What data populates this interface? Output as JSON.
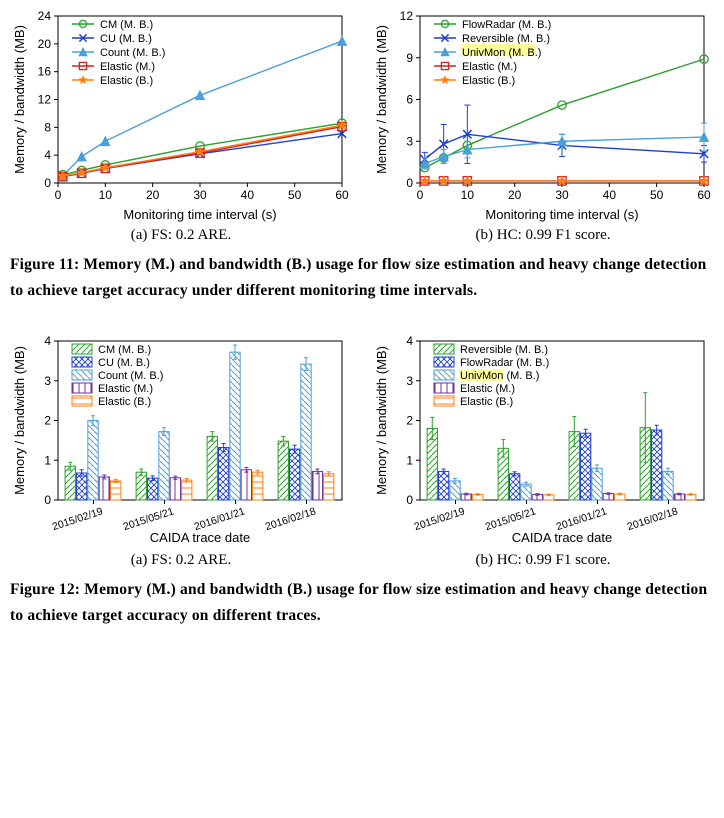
{
  "fig11": {
    "caption": "Memory (M.) and bandwidth (B.) usage for flow size estimation and heavy change detection to achieve target accuracy under different monitoring time intervals.",
    "fignum": "Figure 11:",
    "panel_a": {
      "type": "line",
      "subcaption": "(a) FS: 0.2 ARE.",
      "xlabel": "Monitoring time interval (s)",
      "ylabel": "Memory / bandwidth (MB)",
      "xticks": [
        0,
        10,
        20,
        30,
        40,
        50,
        60
      ],
      "yticks": [
        0,
        4,
        8,
        12,
        16,
        20,
        24
      ],
      "xlim": [
        0,
        60
      ],
      "ylim": [
        0,
        24
      ],
      "legend_pos": "top-left-inset",
      "series": [
        {
          "name": "CM (M. B.)",
          "color": "#2ca02c",
          "marker": "circle",
          "fill": "none",
          "dash": "",
          "data": [
            [
              1,
              1.2
            ],
            [
              5,
              1.8
            ],
            [
              10,
              2.6
            ],
            [
              30,
              5.3
            ],
            [
              60,
              8.6
            ]
          ]
        },
        {
          "name": "CU (M. B.)",
          "color": "#1f3fd1",
          "marker": "x",
          "fill": "none",
          "dash": "",
          "data": [
            [
              1,
              1.0
            ],
            [
              5,
              1.4
            ],
            [
              10,
              2.1
            ],
            [
              30,
              4.2
            ],
            [
              60,
              7.1
            ]
          ]
        },
        {
          "name": "Count (M. B.)",
          "color": "#4aa0d9",
          "marker": "triangle",
          "fill": "#4aa0d9",
          "dash": "",
          "data": [
            [
              1,
              1.0
            ],
            [
              5,
              3.8
            ],
            [
              10,
              6.0
            ],
            [
              30,
              12.6
            ],
            [
              60,
              20.4
            ]
          ]
        },
        {
          "name": "Elastic (M.)",
          "color": "#d02424",
          "marker": "square",
          "fill": "none",
          "dash": "",
          "data": [
            [
              1,
              0.9
            ],
            [
              5,
              1.4
            ],
            [
              10,
              2.1
            ],
            [
              30,
              4.3
            ],
            [
              60,
              8.1
            ]
          ]
        },
        {
          "name": "Elastic (B.)",
          "color": "#ff7f0e",
          "marker": "star",
          "fill": "#ff7f0e",
          "dash": "",
          "data": [
            [
              1,
              1.0
            ],
            [
              5,
              1.5
            ],
            [
              10,
              2.2
            ],
            [
              30,
              4.5
            ],
            [
              60,
              8.3
            ]
          ]
        }
      ]
    },
    "panel_b": {
      "type": "line",
      "subcaption": "(b) HC: 0.99 F1 score.",
      "xlabel": "Monitoring time interval (s)",
      "ylabel": "Memory / bandwidth (MB)",
      "xticks": [
        0,
        10,
        20,
        30,
        40,
        50,
        60
      ],
      "yticks": [
        0,
        3,
        6,
        9,
        12
      ],
      "xlim": [
        0,
        60
      ],
      "ylim": [
        0,
        12
      ],
      "legend_pos": "top-left-inset",
      "series": [
        {
          "name": "FlowRadar (M. B.)",
          "color": "#2ca02c",
          "marker": "circle",
          "fill": "none",
          "dash": "",
          "data": [
            [
              1,
              1.1
            ],
            [
              5,
              1.8
            ],
            [
              10,
              2.7
            ],
            [
              30,
              5.6
            ],
            [
              60,
              8.9
            ]
          ]
        },
        {
          "name": "Reversible (M. B.)",
          "color": "#1f3fd1",
          "marker": "x",
          "fill": "none",
          "dash": "",
          "data": [
            [
              1,
              1.7
            ],
            [
              5,
              2.8
            ],
            [
              10,
              3.5
            ],
            [
              30,
              2.7
            ],
            [
              60,
              2.1
            ]
          ],
          "err": [
            [
              1,
              0.5
            ],
            [
              5,
              1.4
            ],
            [
              10,
              2.1
            ],
            [
              30,
              0.8
            ],
            [
              60,
              0.6
            ]
          ]
        },
        {
          "name": "UnivMon (M. B.)",
          "hl": true,
          "color": "#4aa0d9",
          "marker": "triangle",
          "fill": "#4aa0d9",
          "dash": "",
          "data": [
            [
              1,
              1.4
            ],
            [
              5,
              1.9
            ],
            [
              10,
              2.4
            ],
            [
              30,
              3.0
            ],
            [
              60,
              3.3
            ]
          ],
          "err": [
            [
              1,
              0.4
            ],
            [
              5,
              0.5
            ],
            [
              10,
              0.6
            ],
            [
              30,
              0.5
            ],
            [
              60,
              1.0
            ]
          ]
        },
        {
          "name": "Elastic (M.)",
          "color": "#d02424",
          "marker": "square",
          "fill": "none",
          "dash": "",
          "data": [
            [
              1,
              0.15
            ],
            [
              5,
              0.15
            ],
            [
              10,
              0.15
            ],
            [
              30,
              0.15
            ],
            [
              60,
              0.15
            ]
          ]
        },
        {
          "name": "Elastic (B.)",
          "color": "#ff7f0e",
          "marker": "star",
          "fill": "#ff7f0e",
          "dash": "",
          "data": [
            [
              1,
              0.15
            ],
            [
              5,
              0.15
            ],
            [
              10,
              0.15
            ],
            [
              30,
              0.15
            ],
            [
              60,
              0.15
            ]
          ]
        }
      ]
    }
  },
  "fig12": {
    "caption": "Memory (M.) and bandwidth (B.) usage for flow size estimation and heavy change detection to achieve target accuracy on different traces.",
    "fignum": "Figure 12:",
    "panel_a": {
      "type": "bar",
      "subcaption": "(a) FS: 0.2 ARE.",
      "xlabel": "CAIDA trace date",
      "ylabel": "Memory / bandwidth (MB)",
      "categories": [
        "2015/02/19",
        "2015/05/21",
        "2016/01/21",
        "2016/02/18"
      ],
      "yticks": [
        0,
        1,
        2,
        3,
        4
      ],
      "ylim": [
        0,
        4
      ],
      "legend_pos": "top-left-inset",
      "series": [
        {
          "name": "CM (M. B.)",
          "color": "#2ca02c",
          "pattern": "diag-r"
        },
        {
          "name": "CU (M. B.)",
          "color": "#1f3fd1",
          "pattern": "cross"
        },
        {
          "name": "Count (M. B.)",
          "color": "#4aa0d9",
          "pattern": "diag-l"
        },
        {
          "name": "Elastic (M.)",
          "color": "#7030a0",
          "pattern": "vert"
        },
        {
          "name": "Elastic (B.)",
          "color": "#ff7f0e",
          "pattern": "horiz"
        }
      ],
      "values": [
        [
          0.85,
          0.68,
          2.0,
          0.58,
          0.48
        ],
        [
          0.7,
          0.55,
          1.72,
          0.56,
          0.5
        ],
        [
          1.6,
          1.32,
          3.72,
          0.76,
          0.7
        ],
        [
          1.48,
          1.28,
          3.42,
          0.72,
          0.66
        ]
      ],
      "err": [
        [
          0.1,
          0.08,
          0.12,
          0.05,
          0.04
        ],
        [
          0.08,
          0.06,
          0.1,
          0.04,
          0.04
        ],
        [
          0.12,
          0.1,
          0.18,
          0.06,
          0.05
        ],
        [
          0.12,
          0.1,
          0.16,
          0.06,
          0.05
        ]
      ]
    },
    "panel_b": {
      "type": "bar",
      "subcaption": "(b) HC: 0.99 F1 score.",
      "xlabel": "CAIDA trace date",
      "ylabel": "Memory / bandwidth (MB)",
      "categories": [
        "2015/02/19",
        "2015/05/21",
        "2016/01/21",
        "2016/02/18"
      ],
      "yticks": [
        0,
        1,
        2,
        3,
        4
      ],
      "ylim": [
        0,
        4
      ],
      "legend_pos": "top-left-inset",
      "series": [
        {
          "name": "Reversible (M. B.)",
          "color": "#2ca02c",
          "pattern": "diag-r"
        },
        {
          "name": "FlowRadar (M. B.)",
          "color": "#1f3fd1",
          "pattern": "cross"
        },
        {
          "name": "UnivMon (M. B.)",
          "hl": true,
          "color": "#4aa0d9",
          "pattern": "diag-l"
        },
        {
          "name": "Elastic (M.)",
          "color": "#7030a0",
          "pattern": "vert"
        },
        {
          "name": "Elastic (B.)",
          "color": "#ff7f0e",
          "pattern": "horiz"
        }
      ],
      "values": [
        [
          1.8,
          0.72,
          0.48,
          0.15,
          0.14
        ],
        [
          1.3,
          0.66,
          0.4,
          0.14,
          0.13
        ],
        [
          1.72,
          1.68,
          0.8,
          0.16,
          0.15
        ],
        [
          1.82,
          1.76,
          0.72,
          0.15,
          0.14
        ]
      ],
      "err": [
        [
          0.28,
          0.06,
          0.06,
          0.02,
          0.02
        ],
        [
          0.22,
          0.05,
          0.05,
          0.02,
          0.02
        ],
        [
          0.38,
          0.1,
          0.08,
          0.02,
          0.02
        ],
        [
          0.88,
          0.12,
          0.08,
          0.02,
          0.02
        ]
      ]
    }
  },
  "style": {
    "font": "sans-serif",
    "axis_font_size": 13,
    "tick_font_size": 12,
    "legend_font_size": 11,
    "grid_color": "#cccccc",
    "axis_color": "#000000",
    "line_width": 1.4,
    "marker_size": 4.2,
    "bar_width": 0.14
  }
}
